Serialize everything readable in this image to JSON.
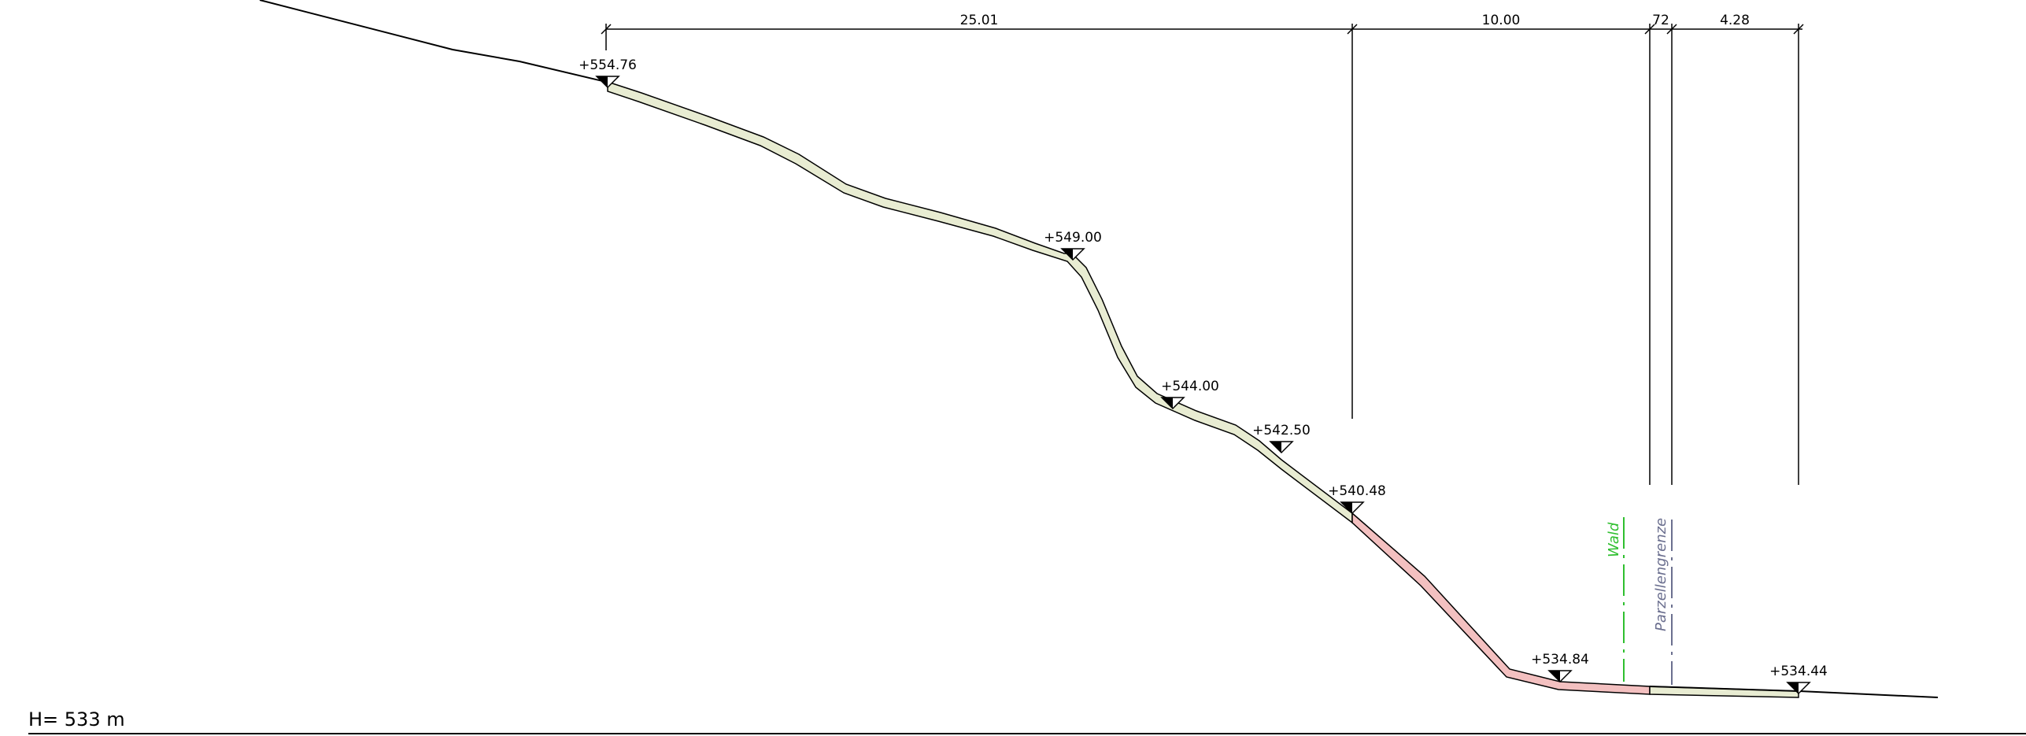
{
  "dimensions": [
    "25.01",
    "10.00",
    "72",
    "4.28"
  ],
  "elevations": [
    "+554.76",
    "+549.00",
    "+544.00",
    "+542.50",
    "+540.48",
    "+534.84",
    "+534.44"
  ],
  "reference_height": "H= 533 m",
  "boundaries": {
    "forest": "Wald",
    "parcel": "Parzellengrenze"
  },
  "colors": {
    "line": "#000000",
    "slope_fill": "#e8ecd2",
    "cut_fill": "#f3c0c0",
    "forest_line": "#2fbf2f",
    "parcel_line": "#6b6f8f"
  }
}
